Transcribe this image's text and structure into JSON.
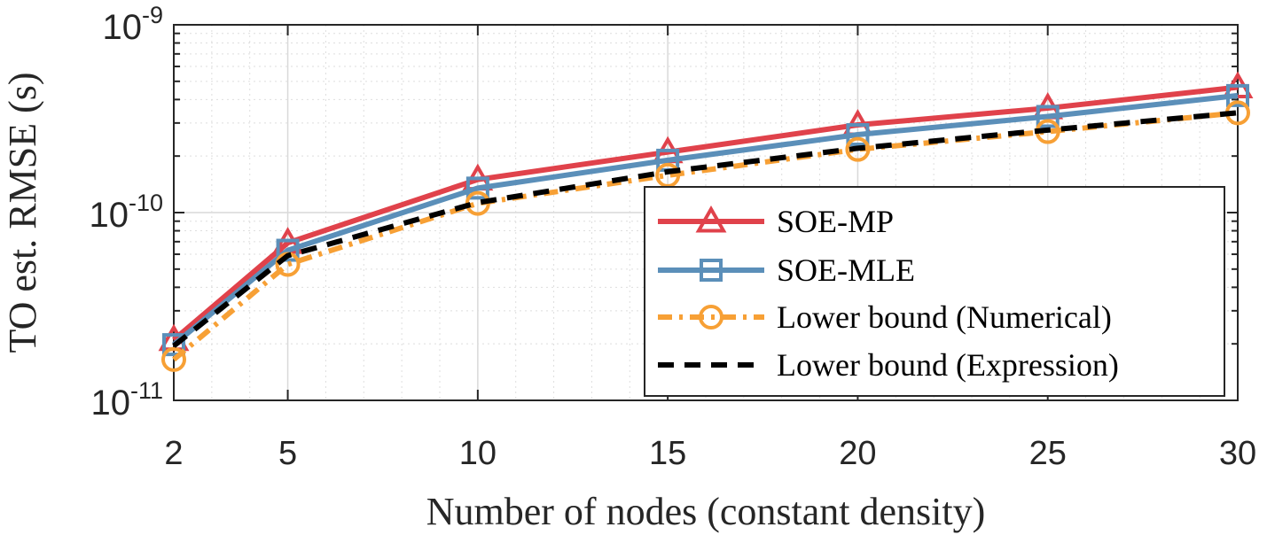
{
  "chart_data": {
    "type": "line",
    "title": "",
    "xlabel": "Number of nodes (constant density)",
    "ylabel": "TO est. RMSE (s)",
    "x": [
      2,
      5,
      10,
      15,
      20,
      25,
      30
    ],
    "xlim": [
      2,
      30
    ],
    "ylim": [
      1e-11,
      1e-09
    ],
    "yscale": "log",
    "x_ticks": [
      "2",
      "5",
      "10",
      "15",
      "20",
      "25",
      "30"
    ],
    "y_ticks": [
      {
        "base": "10",
        "exp": "-9",
        "value": 1e-09
      },
      {
        "base": "10",
        "exp": "-10",
        "value": 1e-10
      },
      {
        "base": "10",
        "exp": "-11",
        "value": 1e-11
      }
    ],
    "grid": true,
    "legend_position": "bottom-right",
    "series": [
      {
        "name": "SOE-MP",
        "color": "#e0424b",
        "marker": "triangle",
        "dash": "solid",
        "values": [
          2.1e-11,
          6.9e-11,
          1.5e-10,
          2.1e-10,
          2.93e-10,
          3.6e-10,
          4.65e-10
        ]
      },
      {
        "name": "SOE-MLE",
        "color": "#5b8fb9",
        "marker": "square",
        "dash": "solid",
        "values": [
          1.98e-11,
          6.3e-11,
          1.35e-10,
          1.9e-10,
          2.6e-10,
          3.25e-10,
          4.2e-10
        ]
      },
      {
        "name": "Lower bound (Numerical)",
        "color": "#f7a035",
        "marker": "circle",
        "dash": "dashdot",
        "values": [
          1.65e-11,
          5.3e-11,
          1.12e-10,
          1.58e-10,
          2.17e-10,
          2.7e-10,
          3.4e-10
        ]
      },
      {
        "name": "Lower bound (Expression)",
        "color": "#000000",
        "marker": "none",
        "dash": "dashed",
        "values": [
          1.95e-11,
          5.9e-11,
          1.13e-10,
          1.65e-10,
          2.2e-10,
          2.75e-10,
          3.4e-10
        ]
      }
    ]
  }
}
